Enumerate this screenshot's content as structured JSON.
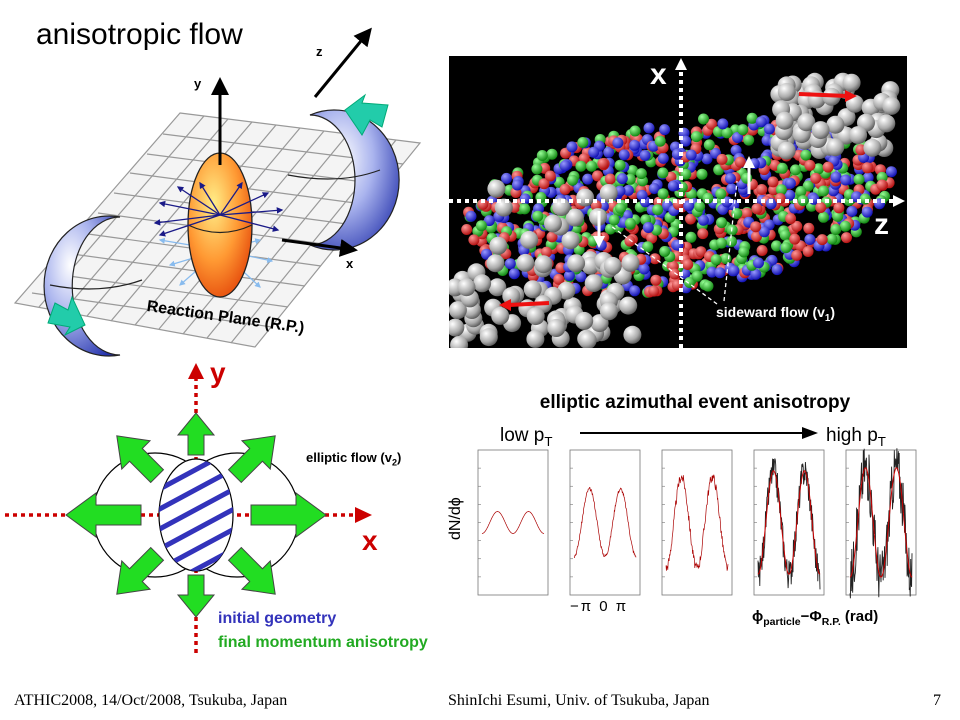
{
  "slide": {
    "title": "anisotropic flow",
    "page_number": "7"
  },
  "diagram_3d": {
    "axis_y": "y",
    "axis_z": "z",
    "axis_x": "x",
    "reaction_plane_label": "Reaction Plane (R.P.)"
  },
  "simulation": {
    "axis_x": "x",
    "axis_z": "z",
    "sideward_flow_label": "sideward flow (v",
    "sideward_flow_sub": "1",
    "sideward_flow_close": ")"
  },
  "elliptic_diagram": {
    "axis_y": "y",
    "axis_x": "x",
    "elliptic_flow_label": "elliptic flow (v",
    "elliptic_flow_sub": "2",
    "elliptic_flow_close": ")",
    "initial_geometry": "initial geometry",
    "final_momentum": "final momentum anisotropy"
  },
  "anisotropy_plots": {
    "title": "elliptic azimuthal event anisotropy",
    "low_pt": "low p",
    "high_pt": "high p",
    "pt_sub": "T",
    "y_label": "dN/dϕ",
    "x_ticks": "−π   0   π",
    "x_axis_label_phi": "ϕ",
    "x_axis_label_sub1": "particle",
    "x_axis_label_minus": "−Φ",
    "x_axis_label_sub2": "R.P.",
    "x_axis_label_unit": " (rad)",
    "panel_amplitudes": [
      0.18,
      0.55,
      0.75,
      0.85,
      0.9
    ],
    "panel_noise": [
      0,
      0.03,
      0.08,
      0.25,
      0.45
    ]
  },
  "footer": {
    "left": "ATHIC2008, 14/Oct/2008, Tsukuba, Japan",
    "middle": "ShinIchi Esumi, Univ. of Tsukuba, Japan"
  },
  "colors": {
    "red": "#cc0000",
    "green": "#22aa22",
    "blue": "#3333bb",
    "arrow_green": "#22dd22",
    "teal": "#22ccaa"
  }
}
